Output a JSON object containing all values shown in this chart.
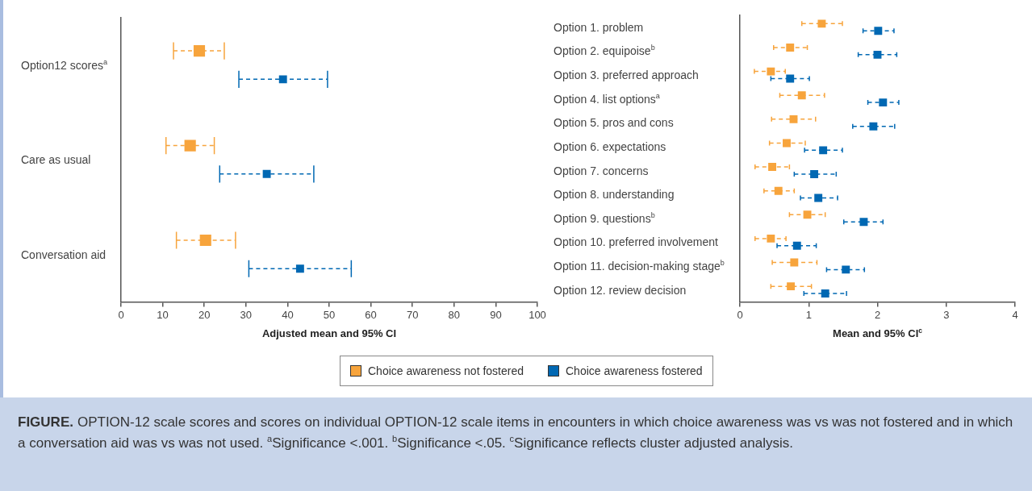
{
  "chart_data": [
    {
      "type": "scatter",
      "orientation": "horizontal",
      "categories": [
        "Option12 scores$^{a}$",
        "Care as usual",
        "Conversation aid"
      ],
      "xlabel": "Adjusted mean and 95% CI",
      "xlim": [
        0,
        100
      ],
      "xticks": [
        0,
        10,
        20,
        30,
        40,
        50,
        60,
        70,
        80,
        90,
        100
      ],
      "grid": false,
      "legend": "bottom",
      "marker": "square",
      "series": [
        {
          "name": "Choice awareness not fostered",
          "color": "#f7a43c",
          "values": [
            18.8,
            16.6,
            20.3
          ],
          "errors": [
            [
              12.6,
              24.8
            ],
            [
              10.8,
              22.4
            ],
            [
              13.3,
              27.5
            ]
          ]
        },
        {
          "name": "Choice awareness fostered",
          "color": "#0068b3",
          "values": [
            38.9,
            35.0,
            43.0
          ],
          "errors": [
            [
              28.3,
              49.6
            ],
            [
              23.7,
              46.3
            ],
            [
              30.7,
              55.3
            ]
          ]
        }
      ]
    },
    {
      "type": "scatter",
      "orientation": "horizontal",
      "categories": [
        "Option 1. problem",
        "Option 2. equipoise$^{b}$",
        "Option 3. preferred approach",
        "Option 4. list options$^{a}$",
        "Option 5. pros and cons",
        "Option 6. expectations",
        "Option 7. concerns",
        "Option 8. understanding",
        "Option 9. questions$^{b}$",
        "Option 10. preferred involvement",
        "Option 11. decision-making stage$^{b}$",
        "Option 12. review decision"
      ],
      "xlabel": "Mean and 95% CI$^{c}$",
      "xlim": [
        0,
        4
      ],
      "xticks": [
        0,
        1,
        2,
        3,
        4
      ],
      "grid": false,
      "marker": "square",
      "annotations": [
        "FIGURE.",
        "OPTION-12 scale scores and scores on individual OPTION-12 scale items in encounters in which choice awareness was vs was not fostered and in which a conversation aid was vs was not used. $^{a}$Significance <.001. $^{b}$Significance <.05. $^{c}$Significance reflects cluster adjusted analysis."
      ],
      "series": [
        {
          "color": "#f7a43c",
          "values": [
            1.19,
            0.73,
            0.45,
            0.9,
            0.78,
            0.68,
            0.47,
            0.56,
            0.98,
            0.45,
            0.79,
            0.74
          ],
          "errors": [
            [
              0.9,
              1.49
            ],
            [
              0.49,
              0.98
            ],
            [
              0.21,
              0.66
            ],
            [
              0.58,
              1.23
            ],
            [
              0.46,
              1.1
            ],
            [
              0.43,
              0.95
            ],
            [
              0.22,
              0.72
            ],
            [
              0.35,
              0.79
            ],
            [
              0.72,
              1.24
            ],
            [
              0.22,
              0.67
            ],
            [
              0.47,
              1.12
            ],
            [
              0.45,
              1.04
            ]
          ]
        },
        {
          "color": "#0068b3",
          "values": [
            2.01,
            2.0,
            0.73,
            2.08,
            1.94,
            1.21,
            1.08,
            1.14,
            1.8,
            0.83,
            1.54,
            1.24
          ],
          "errors": [
            [
              1.79,
              2.24
            ],
            [
              1.72,
              2.28
            ],
            [
              0.45,
              1.01
            ],
            [
              1.86,
              2.31
            ],
            [
              1.64,
              2.25
            ],
            [
              0.94,
              1.49
            ],
            [
              0.79,
              1.4
            ],
            [
              0.88,
              1.42
            ],
            [
              1.51,
              2.08
            ],
            [
              0.54,
              1.11
            ],
            [
              1.26,
              1.81
            ],
            [
              0.93,
              1.55
            ]
          ]
        }
      ]
    }
  ]
}
